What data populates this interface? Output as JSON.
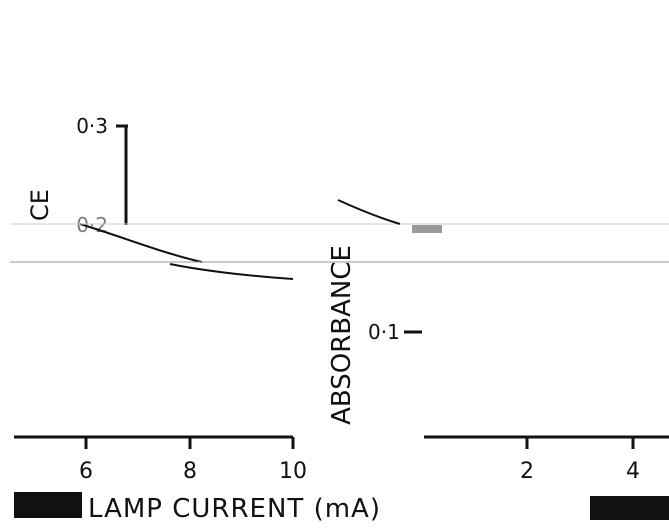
{
  "chart_data": {
    "type": "line",
    "xlabel": "LAMP CURRENT (mA)",
    "ylabel_left": "CE",
    "ylabel_middle": "ABSORBANCE",
    "left_panel": {
      "xticks": [
        "6",
        "8",
        "10"
      ],
      "xlim": [
        4.5,
        10
      ],
      "yticks": [
        "0·3",
        "0·2"
      ],
      "series": [
        {
          "x": [
            5.0,
            5.5,
            6.5,
            7.5,
            8.0
          ],
          "y": [
            0.205,
            0.198,
            0.186,
            0.176,
            0.172
          ]
        },
        {
          "x": [
            8.0,
            9.0,
            10.0
          ],
          "y": [
            0.172,
            0.166,
            0.163
          ]
        }
      ]
    },
    "right_panel": {
      "xticks": [
        "2",
        "4"
      ],
      "xlim": [
        0,
        5
      ],
      "yticks": [
        "0·1"
      ],
      "series": [
        {
          "x": [
            0.5,
            1.0,
            1.2
          ],
          "y": [
            0.215,
            0.205,
            0.198
          ]
        }
      ]
    }
  }
}
